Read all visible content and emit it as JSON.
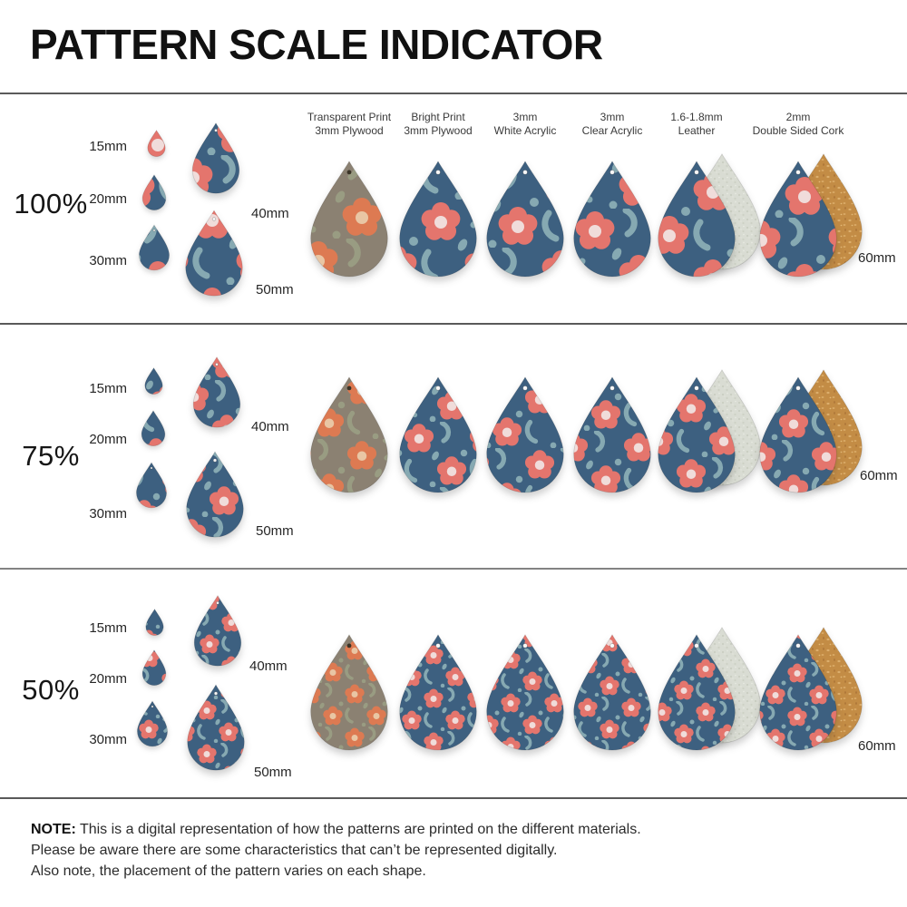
{
  "title": "PATTERN SCALE INDICATOR",
  "materials": [
    {
      "line1": "Transparent Print",
      "line2": "3mm Plywood",
      "scheme": "wood",
      "backing": null
    },
    {
      "line1": "Bright Print",
      "line2": "3mm Plywood",
      "scheme": "bright",
      "backing": null
    },
    {
      "line1": "3mm",
      "line2": "White Acrylic",
      "scheme": "bright",
      "backing": null
    },
    {
      "line1": "3mm",
      "line2": "Clear Acrylic",
      "scheme": "bright",
      "backing": null
    },
    {
      "line1": "1.6-1.8mm",
      "line2": "Leather",
      "scheme": "bright",
      "backing": "leather"
    },
    {
      "line1": "2mm",
      "line2": "Double Sided Cork",
      "scheme": "bright",
      "backing": "cork"
    }
  ],
  "rows": [
    {
      "scale_label": "100%",
      "sizes": [
        {
          "label": "15mm"
        },
        {
          "label": "20mm"
        },
        {
          "label": "30mm"
        },
        {
          "label": "40mm"
        },
        {
          "label": "50mm"
        }
      ],
      "large_label": "60mm"
    },
    {
      "scale_label": "75%",
      "sizes": [
        {
          "label": "15mm"
        },
        {
          "label": "20mm"
        },
        {
          "label": "30mm"
        },
        {
          "label": "40mm"
        },
        {
          "label": "50mm"
        }
      ],
      "large_label": "60mm"
    },
    {
      "scale_label": "50%",
      "sizes": [
        {
          "label": "15mm"
        },
        {
          "label": "20mm"
        },
        {
          "label": "30mm"
        },
        {
          "label": "40mm"
        },
        {
          "label": "50mm"
        }
      ],
      "large_label": "60mm"
    }
  ],
  "note": {
    "label": "NOTE:",
    "line1": "This is a digital representation of how the patterns are printed on the different materials.",
    "line2": "Please be aware there are some characteristics that can’t be represented digitally.",
    "line3": "Also note, the placement of the pattern varies on each shape."
  },
  "colors": {
    "pattern_bright": {
      "bg": "#3d6080",
      "flower": "#e4756d",
      "center": "#f0dcda",
      "leaf": "#86a9b2"
    },
    "pattern_wood": {
      "bg": "#8b8172",
      "flower": "#dd7a52",
      "center": "#e9c6a4",
      "leaf": "#999c82"
    },
    "leather_back": "#d9dcd3",
    "cork_back": "#c38c45",
    "divider": "#5a5a5a",
    "text": "#1e1e1e"
  }
}
